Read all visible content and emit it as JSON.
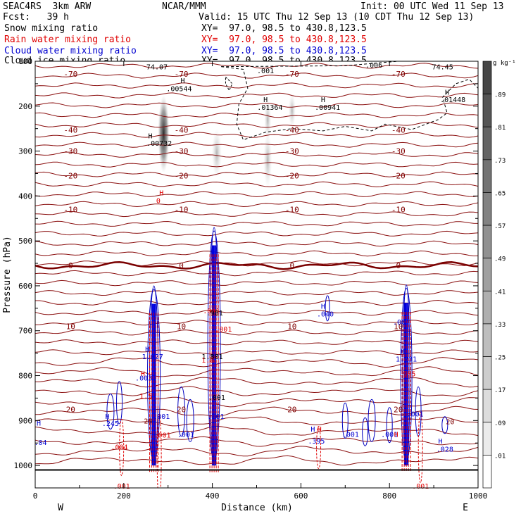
{
  "header": {
    "model": "SEAC4RS  3km ARW",
    "forecast": "Fcst:   39 h",
    "org": "NCAR/MMM",
    "init": "Init: 00 UTC Wed 11 Sep 13",
    "valid": "Valid: 15 UTC Thu 12 Sep 13 (10 CDT Thu 12 Sep 13)",
    "fields": [
      {
        "name": "Snow mixing ratio",
        "xy": "XY=  97.0, 98.5 to 430.8,123.5",
        "color": "#000000"
      },
      {
        "name": "Rain water mixing ratio",
        "xy": "XY=  97.0, 98.5 to 430.8,123.5",
        "color": "#e00000"
      },
      {
        "name": "Cloud water mixing ratio",
        "xy": "XY=  97.0, 98.5 to 430.8,123.5",
        "color": "#0000d0"
      },
      {
        "name": "Cloud ice mixing ratio",
        "xy": "XY=  97.0, 98.5 to 430.8,123.5",
        "color": "#000000"
      }
    ]
  },
  "chart_data": {
    "type": "contour",
    "xlabel": "Distance (km)",
    "ylabel": "Pressure (hPa)",
    "xlim": [
      0,
      1000
    ],
    "ylim": [
      1050,
      100
    ],
    "x_ticks": [
      0,
      200,
      400,
      600,
      800,
      1000
    ],
    "y_ticks": [
      100,
      200,
      300,
      400,
      500,
      600,
      700,
      800,
      900,
      1000
    ],
    "y_tick_labels": [
      "100",
      "200",
      "300",
      "400",
      "500",
      "600",
      "700",
      "800",
      "900",
      "1000"
    ],
    "x_end_labels": {
      "left": "W",
      "right": "E"
    },
    "colorbar": {
      "unit": "g kg⁻¹",
      "values": [
        ".01",
        ".09",
        ".17",
        ".25",
        ".33",
        ".41",
        ".49",
        ".57",
        ".65",
        ".73",
        ".81",
        ".89"
      ]
    },
    "temperature_contours": [
      {
        "label": "-70",
        "p": 128
      },
      {
        "label": "-40",
        "p": 253
      },
      {
        "label": "-30",
        "p": 300
      },
      {
        "label": "-20",
        "p": 355
      },
      {
        "label": "-10",
        "p": 430
      },
      {
        "label": "0",
        "p": 555
      },
      {
        "label": "10",
        "p": 690
      },
      {
        "label": "20",
        "p": 875
      }
    ],
    "annotations": [
      {
        "text": "74.07",
        "x": 275,
        "p": 112,
        "color": "#000000"
      },
      {
        "text": "74.45",
        "x": 920,
        "p": 112,
        "color": "#000000"
      },
      {
        "text": ".001",
        "x": 520,
        "p": 120,
        "color": "#000000"
      },
      {
        "text": ".006",
        "x": 765,
        "p": 108,
        "color": "#000000"
      },
      {
        "text": "H",
        "x": 333,
        "p": 142,
        "color": "#000000"
      },
      {
        "text": ".00544",
        "x": 325,
        "p": 160,
        "color": "#000000"
      },
      {
        "text": "H",
        "x": 520,
        "p": 185,
        "color": "#000000"
      },
      {
        "text": ".01364",
        "x": 530,
        "p": 202,
        "color": "#000000"
      },
      {
        "text": "H",
        "x": 650,
        "p": 185,
        "color": "#000000"
      },
      {
        "text": ".00941",
        "x": 660,
        "p": 202,
        "color": "#000000"
      },
      {
        "text": "H",
        "x": 930,
        "p": 168,
        "color": "#000000"
      },
      {
        "text": ".01448",
        "x": 943,
        "p": 185,
        "color": "#000000"
      },
      {
        "text": "H",
        "x": 260,
        "p": 265,
        "color": "#000000"
      },
      {
        "text": ".00732",
        "x": 280,
        "p": 282,
        "color": "#000000"
      },
      {
        "text": "H",
        "x": 285,
        "p": 392,
        "color": "#e00000"
      },
      {
        "text": "0",
        "x": 278,
        "p": 410,
        "color": "#e00000"
      },
      {
        "text": "H",
        "x": 650,
        "p": 645,
        "color": "#0000d0"
      },
      {
        "text": ".040",
        "x": 655,
        "p": 662,
        "color": "#0000d0"
      },
      {
        "text": "H",
        "x": 253,
        "p": 740,
        "color": "#0000d0"
      },
      {
        "text": "1.027",
        "x": 265,
        "p": 757,
        "color": "#0000d0"
      },
      {
        "text": ".001",
        "x": 398,
        "p": 655,
        "color": "#e00000"
      },
      {
        "text": ".981",
        "x": 405,
        "p": 660,
        "color": "#000000"
      },
      {
        "text": "1.801",
        "x": 400,
        "p": 757,
        "color": "#000000"
      },
      {
        "text": "1.8",
        "x": 390,
        "p": 765,
        "color": "#e00000"
      },
      {
        "text": ".001",
        "x": 425,
        "p": 696,
        "color": "#e00000"
      },
      {
        "text": ".001",
        "x": 410,
        "p": 848,
        "color": "#000000"
      },
      {
        "text": ".001",
        "x": 408,
        "p": 890,
        "color": "#0000d0"
      },
      {
        "text": "H",
        "x": 243,
        "p": 795,
        "color": "#e00000"
      },
      {
        "text": "1.5",
        "x": 250,
        "p": 845,
        "color": "#e00000"
      },
      {
        "text": ".001",
        "x": 285,
        "p": 890,
        "color": "#0000d0"
      },
      {
        "text": ".001",
        "x": 340,
        "p": 930,
        "color": "#0000d0"
      },
      {
        "text": ".001",
        "x": 287,
        "p": 932,
        "color": "#e00000"
      },
      {
        "text": ".003",
        "x": 245,
        "p": 805,
        "color": "#0000d0"
      },
      {
        "text": "H",
        "x": 163,
        "p": 890,
        "color": "#0000d0"
      },
      {
        "text": ".245",
        "x": 170,
        "p": 906,
        "color": "#0000d0"
      },
      {
        "text": ".004",
        "x": 190,
        "p": 958,
        "color": "#e00000"
      },
      {
        "text": ".001",
        "x": 195,
        "p": 1045,
        "color": "#e00000"
      },
      {
        "text": "H",
        "x": 627,
        "p": 918,
        "color": "#0000d0"
      },
      {
        "text": ".395",
        "x": 635,
        "p": 945,
        "color": "#0000d0"
      },
      {
        "text": "H",
        "x": 642,
        "p": 918,
        "color": "#e00000"
      },
      {
        "text": ".001",
        "x": 712,
        "p": 930,
        "color": "#0000d0"
      },
      {
        "text": ".001",
        "x": 800,
        "p": 930,
        "color": "#0000d0"
      },
      {
        "text": "H",
        "x": 815,
        "p": 930,
        "color": "#e00000"
      },
      {
        "text": ".00",
        "x": 822,
        "p": 680,
        "color": "#0000d0"
      },
      {
        "text": "H",
        "x": 830,
        "p": 745,
        "color": "#0000d0"
      },
      {
        "text": "1.231",
        "x": 838,
        "p": 762,
        "color": "#0000d0"
      },
      {
        "text": ".905",
        "x": 840,
        "p": 795,
        "color": "#e00000"
      },
      {
        "text": ".001",
        "x": 858,
        "p": 885,
        "color": "#0000d0"
      },
      {
        "text": "H",
        "x": 915,
        "p": 945,
        "color": "#0000d0"
      },
      {
        "text": ".028",
        "x": 925,
        "p": 963,
        "color": "#0000d0"
      },
      {
        "text": ".001",
        "x": 870,
        "p": 1045,
        "color": "#e00000"
      },
      {
        "text": ".04",
        "x": 12,
        "p": 948,
        "color": "#0000d0"
      },
      {
        "text": "H",
        "x": 8,
        "p": 905,
        "color": "#0000d0"
      },
      {
        "text": "20",
        "x": 255,
        "p": 900,
        "color": "#800000"
      },
      {
        "text": "20",
        "x": 937,
        "p": 902,
        "color": "#800000"
      }
    ]
  }
}
